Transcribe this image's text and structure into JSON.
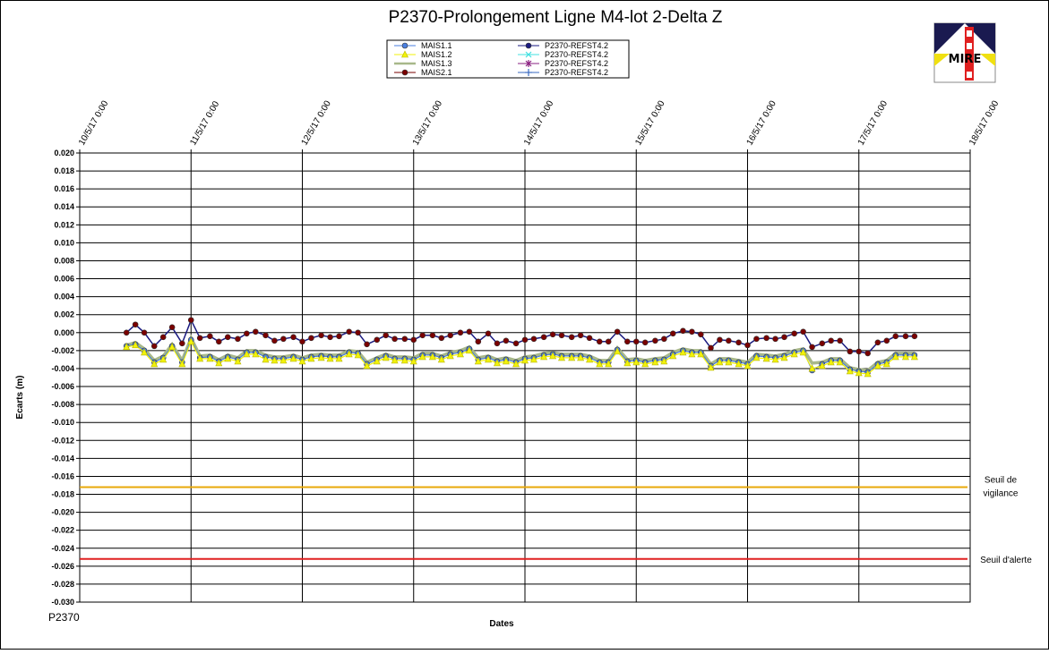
{
  "chart_data": {
    "type": "line",
    "title": "P2370-Prolongement  Ligne  M4-lot  2-Delta  Z",
    "xlabel": "Dates",
    "ylabel": "Ecarts (m)",
    "footer_label": "P2370",
    "logo_text": "MIRE",
    "x_tick_labels": [
      "10/5/17 0:00",
      "11/5/17 0:00",
      "12/5/17 0:00",
      "13/5/17 0:00",
      "14/5/17 0:00",
      "15/5/17 0:00",
      "16/5/17 0:00",
      "17/5/17 0:00",
      "18/5/17 0:00"
    ],
    "xlim_days": [
      10,
      18
    ],
    "y_tick_labels": [
      "0.020",
      "0.018",
      "0.016",
      "0.014",
      "0.012",
      "0.010",
      "0.008",
      "0.006",
      "0.004",
      "0.002",
      "0.000",
      "-0.002",
      "-0.004",
      "-0.006",
      "-0.008",
      "-0.010",
      "-0.012",
      "-0.014",
      "-0.016",
      "-0.018",
      "-0.020",
      "-0.022",
      "-0.024",
      "-0.026",
      "-0.028",
      "-0.030"
    ],
    "ylim": [
      -0.03,
      0.02
    ],
    "grid": true,
    "legend_position": "top-center",
    "thresholds": [
      {
        "label_line1": "Seuil de",
        "label_line2": "vigilance",
        "value": -0.0172,
        "color": "#e8a80a"
      },
      {
        "label_line1": "Seuil d'alerte",
        "label_line2": "",
        "value": -0.0252,
        "color": "#e02020"
      }
    ],
    "series": [
      {
        "name": "MAIS1.1",
        "color": "#4a7fe0",
        "marker": "circle",
        "days": [
          10.42,
          10.5,
          10.58,
          10.67,
          10.75,
          10.83,
          10.92,
          11.0,
          11.08,
          11.17,
          11.25,
          11.33,
          11.42,
          11.5,
          11.58,
          11.67,
          11.75,
          11.83,
          11.92,
          12.0,
          12.08,
          12.17,
          12.25,
          12.33,
          12.42,
          12.5,
          12.58,
          12.67,
          12.75,
          12.83,
          12.92,
          13.0,
          13.08,
          13.17,
          13.25,
          13.33,
          13.42,
          13.5,
          13.58,
          13.67,
          13.75,
          13.83,
          13.92,
          14.0,
          14.08,
          14.17,
          14.25,
          14.33,
          14.42,
          14.5,
          14.58,
          14.67,
          14.75,
          14.83,
          14.92,
          15.0,
          15.08,
          15.17,
          15.25,
          15.33,
          15.42,
          15.5,
          15.58,
          15.67,
          15.75,
          15.83,
          15.92,
          16.0,
          16.08,
          16.17,
          16.25,
          16.33,
          16.42,
          16.5,
          16.58,
          16.67,
          16.75,
          16.83,
          16.92,
          17.0,
          17.08,
          17.17,
          17.25,
          17.33,
          17.42,
          17.5
        ],
        "values": [
          -0.0015,
          -0.0013,
          -0.002,
          -0.0033,
          -0.0028,
          -0.0015,
          -0.0033,
          -0.0008,
          -0.0028,
          -0.0027,
          -0.0032,
          -0.0027,
          -0.003,
          -0.0022,
          -0.0022,
          -0.0027,
          -0.0029,
          -0.0029,
          -0.0027,
          -0.003,
          -0.0027,
          -0.0026,
          -0.0027,
          -0.0027,
          -0.0022,
          -0.0023,
          -0.0035,
          -0.003,
          -0.0026,
          -0.0029,
          -0.0029,
          -0.003,
          -0.0025,
          -0.0025,
          -0.0028,
          -0.0024,
          -0.0022,
          -0.0018,
          -0.003,
          -0.0028,
          -0.0032,
          -0.003,
          -0.0033,
          -0.0029,
          -0.0028,
          -0.0025,
          -0.0024,
          -0.0026,
          -0.0026,
          -0.0026,
          -0.0028,
          -0.0033,
          -0.0033,
          -0.0019,
          -0.0032,
          -0.0031,
          -0.0033,
          -0.0031,
          -0.003,
          -0.0024,
          -0.002,
          -0.0022,
          -0.0022,
          -0.0037,
          -0.0031,
          -0.0031,
          -0.0033,
          -0.0035,
          -0.0026,
          -0.0027,
          -0.0028,
          -0.0026,
          -0.0022,
          -0.002,
          -0.0042,
          -0.0035,
          -0.0031,
          -0.0031,
          -0.0041,
          -0.0043,
          -0.0044,
          -0.0035,
          -0.0033,
          -0.0025,
          -0.0025,
          -0.0025
        ]
      },
      {
        "name": "MAIS1.2",
        "color": "#f2f20a",
        "marker": "triangle",
        "days": [
          10.42,
          10.5,
          10.58,
          10.67,
          10.75,
          10.83,
          10.92,
          11.0,
          11.08,
          11.17,
          11.25,
          11.33,
          11.42,
          11.5,
          11.58,
          11.67,
          11.75,
          11.83,
          11.92,
          12.0,
          12.08,
          12.17,
          12.25,
          12.33,
          12.42,
          12.5,
          12.58,
          12.67,
          12.75,
          12.83,
          12.92,
          13.0,
          13.08,
          13.17,
          13.25,
          13.33,
          13.42,
          13.5,
          13.58,
          13.67,
          13.75,
          13.83,
          13.92,
          14.0,
          14.08,
          14.17,
          14.25,
          14.33,
          14.42,
          14.5,
          14.58,
          14.67,
          14.75,
          14.83,
          14.92,
          15.0,
          15.08,
          15.17,
          15.25,
          15.33,
          15.42,
          15.5,
          15.58,
          15.67,
          15.75,
          15.83,
          15.92,
          16.0,
          16.08,
          16.17,
          16.25,
          16.33,
          16.42,
          16.5,
          16.58,
          16.67,
          16.75,
          16.83,
          16.92,
          17.0,
          17.08,
          17.17,
          17.25,
          17.33,
          17.42,
          17.5
        ],
        "values": [
          -0.0016,
          -0.0014,
          -0.0022,
          -0.0035,
          -0.003,
          -0.0016,
          -0.0035,
          -0.001,
          -0.0029,
          -0.0029,
          -0.0034,
          -0.0029,
          -0.0032,
          -0.0024,
          -0.0024,
          -0.003,
          -0.0031,
          -0.0031,
          -0.0029,
          -0.0032,
          -0.0029,
          -0.0028,
          -0.0029,
          -0.0029,
          -0.0024,
          -0.0025,
          -0.0037,
          -0.0032,
          -0.0028,
          -0.0031,
          -0.0031,
          -0.0032,
          -0.0027,
          -0.0027,
          -0.003,
          -0.0026,
          -0.0024,
          -0.002,
          -0.0032,
          -0.003,
          -0.0034,
          -0.0032,
          -0.0035,
          -0.0031,
          -0.003,
          -0.0027,
          -0.0026,
          -0.0028,
          -0.0028,
          -0.0028,
          -0.003,
          -0.0035,
          -0.0035,
          -0.0021,
          -0.0034,
          -0.0033,
          -0.0035,
          -0.0033,
          -0.0032,
          -0.0026,
          -0.0022,
          -0.0024,
          -0.0024,
          -0.0039,
          -0.0033,
          -0.0033,
          -0.0035,
          -0.0037,
          -0.0028,
          -0.0029,
          -0.003,
          -0.0028,
          -0.0024,
          -0.0022,
          -0.004,
          -0.0037,
          -0.0033,
          -0.0033,
          -0.0043,
          -0.0045,
          -0.0046,
          -0.0037,
          -0.0035,
          -0.0027,
          -0.0027,
          -0.0027
        ]
      },
      {
        "name": "MAIS1.3",
        "color": "#a8b88a",
        "marker": "none",
        "days": [
          10.42,
          10.5,
          10.58,
          10.67,
          10.75,
          10.83,
          10.92,
          11.0,
          11.08,
          11.17,
          11.25,
          11.33,
          11.42,
          11.5,
          11.58,
          11.67,
          11.75,
          11.83,
          11.92,
          12.0,
          12.08,
          12.17,
          12.25,
          12.33,
          12.42,
          12.5,
          12.58,
          12.67,
          12.75,
          12.83,
          12.92,
          13.0,
          13.08,
          13.17,
          13.25,
          13.33,
          13.42,
          13.5,
          13.58,
          13.67,
          13.75,
          13.83,
          13.92,
          14.0,
          14.08,
          14.17,
          14.25,
          14.33,
          14.42,
          14.5,
          14.58,
          14.67,
          14.75,
          14.83,
          14.92,
          15.0,
          15.08,
          15.17,
          15.25,
          15.33,
          15.42,
          15.5,
          15.58,
          15.67,
          15.75,
          15.83,
          15.92,
          16.0,
          16.08,
          16.17,
          16.25,
          16.33,
          16.42,
          16.5,
          16.58,
          16.67,
          16.75,
          16.83,
          16.92,
          17.0,
          17.08,
          17.17,
          17.25,
          17.33,
          17.42,
          17.5
        ],
        "values": [
          -0.0014,
          -0.0011,
          -0.0018,
          -0.0031,
          -0.0026,
          -0.0013,
          -0.0031,
          -0.0006,
          -0.0026,
          -0.0025,
          -0.003,
          -0.0025,
          -0.0028,
          -0.002,
          -0.002,
          -0.0025,
          -0.0027,
          -0.0027,
          -0.0025,
          -0.0028,
          -0.0025,
          -0.0024,
          -0.0025,
          -0.0025,
          -0.002,
          -0.0021,
          -0.0033,
          -0.0028,
          -0.0024,
          -0.0027,
          -0.0027,
          -0.0028,
          -0.0023,
          -0.0023,
          -0.0026,
          -0.0022,
          -0.002,
          -0.0016,
          -0.0028,
          -0.0026,
          -0.003,
          -0.0028,
          -0.0031,
          -0.0027,
          -0.0026,
          -0.0023,
          -0.0022,
          -0.0024,
          -0.0024,
          -0.0024,
          -0.0026,
          -0.0031,
          -0.0031,
          -0.0017,
          -0.003,
          -0.0029,
          -0.0031,
          -0.0029,
          -0.0028,
          -0.0022,
          -0.0018,
          -0.002,
          -0.002,
          -0.0035,
          -0.0029,
          -0.0029,
          -0.0031,
          -0.0033,
          -0.0024,
          -0.0025,
          -0.0026,
          -0.0024,
          -0.002,
          -0.0018,
          -0.0034,
          -0.0033,
          -0.0029,
          -0.0029,
          -0.0039,
          -0.0041,
          -0.0042,
          -0.0033,
          -0.0031,
          -0.0023,
          -0.0023,
          -0.0023
        ]
      },
      {
        "name": "MAIS2.1",
        "color": "#7a0000",
        "marker": "circle",
        "days": [
          10.42,
          10.5,
          10.58,
          10.67,
          10.75,
          10.83,
          10.92,
          11.0,
          11.08,
          11.17,
          11.25,
          11.33,
          11.42,
          11.5,
          11.58,
          11.67,
          11.75,
          11.83,
          11.92,
          12.0,
          12.08,
          12.17,
          12.25,
          12.33,
          12.42,
          12.5,
          12.58,
          12.67,
          12.75,
          12.83,
          12.92,
          13.0,
          13.08,
          13.17,
          13.25,
          13.33,
          13.42,
          13.5,
          13.58,
          13.67,
          13.75,
          13.83,
          13.92,
          14.0,
          14.08,
          14.17,
          14.25,
          14.33,
          14.42,
          14.5,
          14.58,
          14.67,
          14.75,
          14.83,
          14.92,
          15.0,
          15.08,
          15.17,
          15.25,
          15.33,
          15.42,
          15.5,
          15.58,
          15.67,
          15.75,
          15.83,
          15.92,
          16.0,
          16.08,
          16.17,
          16.25,
          16.33,
          16.42,
          16.5,
          16.58,
          16.67,
          16.75,
          16.83,
          16.92,
          17.0,
          17.08,
          17.17,
          17.25,
          17.33,
          17.42,
          17.5
        ],
        "values": [
          0.0,
          0.0009,
          0.0,
          -0.0015,
          -0.0005,
          0.0006,
          -0.0012,
          0.0014,
          -0.0006,
          -0.0004,
          -0.001,
          -0.0005,
          -0.0007,
          -0.0001,
          0.0001,
          -0.0003,
          -0.0009,
          -0.0007,
          -0.0005,
          -0.001,
          -0.0006,
          -0.0003,
          -0.0005,
          -0.0004,
          0.0001,
          0.0,
          -0.0013,
          -0.0008,
          -0.0003,
          -0.0007,
          -0.0007,
          -0.0008,
          -0.0003,
          -0.0003,
          -0.0006,
          -0.0003,
          0.0,
          0.0001,
          -0.001,
          -0.0001,
          -0.0012,
          -0.0009,
          -0.0012,
          -0.0008,
          -0.0007,
          -0.0005,
          -0.0002,
          -0.0003,
          -0.0005,
          -0.0003,
          -0.0006,
          -0.001,
          -0.001,
          0.0001,
          -0.001,
          -0.001,
          -0.0011,
          -0.0009,
          -0.0007,
          -0.0001,
          0.0002,
          0.0001,
          -0.0002,
          -0.0017,
          -0.0008,
          -0.0009,
          -0.0011,
          -0.0014,
          -0.0007,
          -0.0006,
          -0.0007,
          -0.0005,
          -0.0001,
          0.0001,
          -0.0016,
          -0.0012,
          -0.0009,
          -0.0009,
          -0.0021,
          -0.0021,
          -0.0023,
          -0.0011,
          -0.0009,
          -0.0004,
          -0.0004,
          -0.0004
        ]
      },
      {
        "name": "P2370-REFST4.2",
        "color": "#1a1a80",
        "marker": "circle",
        "days": [],
        "values": []
      },
      {
        "name": "P2370-REFST4.2",
        "color": "#40e0e0",
        "marker": "x",
        "days": [],
        "values": []
      },
      {
        "name": "P2370-REFST4.2",
        "color": "#8a2080",
        "marker": "star",
        "days": [],
        "values": []
      },
      {
        "name": "P2370-REFST4.2",
        "color": "#3a6ac0",
        "marker": "plus",
        "days": [],
        "values": []
      }
    ]
  }
}
